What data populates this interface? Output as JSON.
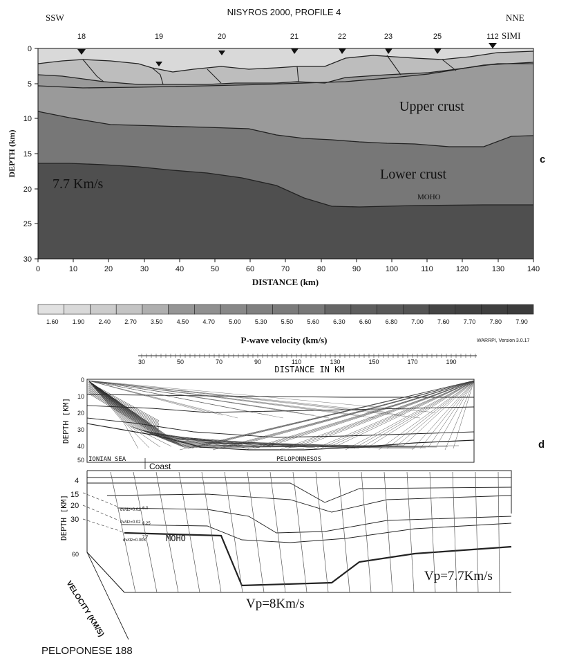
{
  "panel_c": {
    "title": "NISYROS 2000, PROFILE 4",
    "left_dir": "SSW",
    "right_dir": "NNE",
    "x_axis_label": "DISTANCE (km)",
    "y_axis_label": "DEPTH (km)",
    "panel_letter": "c",
    "stations": [
      {
        "label": "18",
        "distance": 12
      },
      {
        "label": "19",
        "distance": 34
      },
      {
        "label": "20",
        "distance": 52
      },
      {
        "label": "21",
        "distance": 73
      },
      {
        "label": "22",
        "distance": 87
      },
      {
        "label": "23",
        "distance": 100
      },
      {
        "label": "25",
        "distance": 114
      },
      {
        "label": "112",
        "distance": 129
      }
    ],
    "simi_label": "SIMI",
    "layer_labels": {
      "upper": "Upper crust",
      "lower": "Lower crust",
      "moho": "MOHO",
      "mantle_velocity": "7.7 Km/s"
    },
    "x_ticks": [
      "0",
      "10",
      "20",
      "30",
      "40",
      "50",
      "60",
      "70",
      "80",
      "90",
      "100",
      "110",
      "120",
      "130",
      "140"
    ],
    "y_ticks": [
      "0",
      "5",
      "10",
      "15",
      "20",
      "25",
      "30"
    ],
    "colorbar": {
      "values": [
        "1.60",
        "1.90",
        "2.40",
        "2.70",
        "3.50",
        "4.50",
        "4.70",
        "5.00",
        "5.30",
        "5.50",
        "5.60",
        "6.30",
        "6.60",
        "6.80",
        "7.00",
        "7.60",
        "7.70",
        "7.80",
        "7.90"
      ],
      "label": "P-wave velocity (km/s)",
      "software": "WARRPI, Version 3.0.17"
    }
  },
  "panel_d": {
    "panel_letter": "d",
    "distance_label": "DISTANCE   IN KM",
    "scale_ticks": [
      "30",
      "50",
      "70",
      "90",
      "110",
      "130",
      "150",
      "170",
      "190"
    ],
    "depth_label": "DEPTH [KM]",
    "upper_depth_ticks": [
      "0",
      "10",
      "20",
      "30",
      "40",
      "50"
    ],
    "ionian_label": "IONIAN SEA",
    "coast_label": "Coast",
    "peloponnesos_label": "PELOPONNESOS",
    "depth_ticks_3d": [
      "4",
      "15",
      "20",
      "30",
      "60"
    ],
    "moho_label": "MOHO",
    "velocity_label": "VELOCITY (KM/S)",
    "vp_right": "Vp=7.7Km/s",
    "vp_center": "Vp=8Km/s",
    "gradient_labels": [
      "dv/dz=0.02",
      "dv/dz=0.02",
      "dv/dz=0.008"
    ],
    "velocity_marks": [
      "6.0",
      "6.25",
      "7.7"
    ],
    "footer": "PELOPONESE 188"
  },
  "colors": {
    "layer_1": "#d9d9d9",
    "layer_2": "#bdbdbd",
    "upper_crust": "#9a9a9a",
    "lower_crust": "#777777",
    "mantle": "#4f4f4f"
  }
}
